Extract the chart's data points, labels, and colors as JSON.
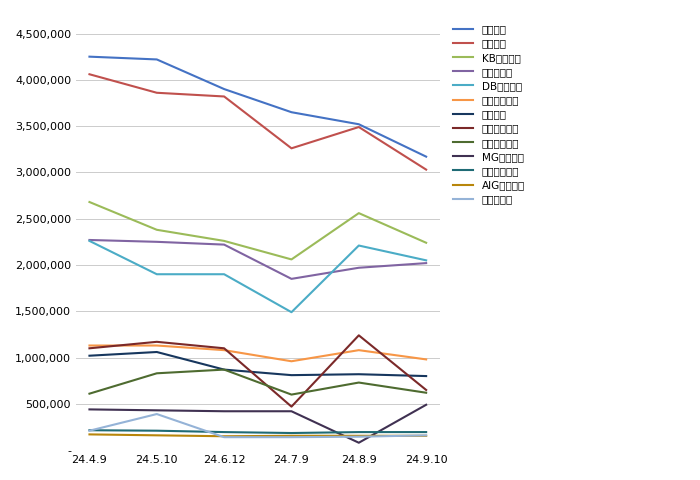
{
  "x_labels": [
    "24.4.9",
    "24.5.10",
    "24.6.12",
    "24.7.9",
    "24.8.9",
    "24.9.10"
  ],
  "series": [
    {
      "name": "현대해상",
      "color": "#4472C4",
      "values": [
        4250000,
        4220000,
        3900000,
        3650000,
        3520000,
        3170000
      ]
    },
    {
      "name": "삼성화재",
      "color": "#C0504D",
      "values": [
        4060000,
        3860000,
        3820000,
        3260000,
        3490000,
        3030000
      ]
    },
    {
      "name": "KB손해보험",
      "color": "#9BBB59",
      "values": [
        2680000,
        2380000,
        2260000,
        2060000,
        2560000,
        2240000
      ]
    },
    {
      "name": "메리츠화재",
      "color": "#8064A2",
      "values": [
        2270000,
        2250000,
        2220000,
        1850000,
        1970000,
        2020000
      ]
    },
    {
      "name": "DB손해보험",
      "color": "#4BACC6",
      "values": [
        2260000,
        1900000,
        1900000,
        1490000,
        2210000,
        2050000
      ]
    },
    {
      "name": "한화손해보험",
      "color": "#F79646",
      "values": [
        1130000,
        1130000,
        1080000,
        960000,
        1080000,
        980000
      ]
    },
    {
      "name": "흥국화재",
      "color": "#17375E",
      "values": [
        1020000,
        1060000,
        870000,
        810000,
        820000,
        800000
      ]
    },
    {
      "name": "롯데손해보험",
      "color": "#7B2929",
      "values": [
        1100000,
        1170000,
        1100000,
        470000,
        1240000,
        650000
      ]
    },
    {
      "name": "농협손해보험",
      "color": "#4E6B30",
      "values": [
        610000,
        830000,
        870000,
        600000,
        730000,
        620000
      ]
    },
    {
      "name": "MG손해보험",
      "color": "#403152",
      "values": [
        440000,
        430000,
        420000,
        420000,
        80000,
        490000
      ]
    },
    {
      "name": "악사손보보험",
      "color": "#1F6B75",
      "values": [
        215000,
        210000,
        195000,
        185000,
        195000,
        195000
      ]
    },
    {
      "name": "AIG손해보험",
      "color": "#B8860B",
      "values": [
        170000,
        160000,
        150000,
        155000,
        155000,
        155000
      ]
    },
    {
      "name": "더케이손보",
      "color": "#95B3D7",
      "values": [
        210000,
        390000,
        140000,
        140000,
        145000,
        160000
      ]
    }
  ],
  "ylim": [
    0,
    4700000
  ],
  "yticks": [
    0,
    500000,
    1000000,
    1500000,
    2000000,
    2500000,
    3000000,
    3500000,
    4000000,
    4500000
  ],
  "background_color": "#FFFFFF",
  "grid_color": "#CCCCCC"
}
